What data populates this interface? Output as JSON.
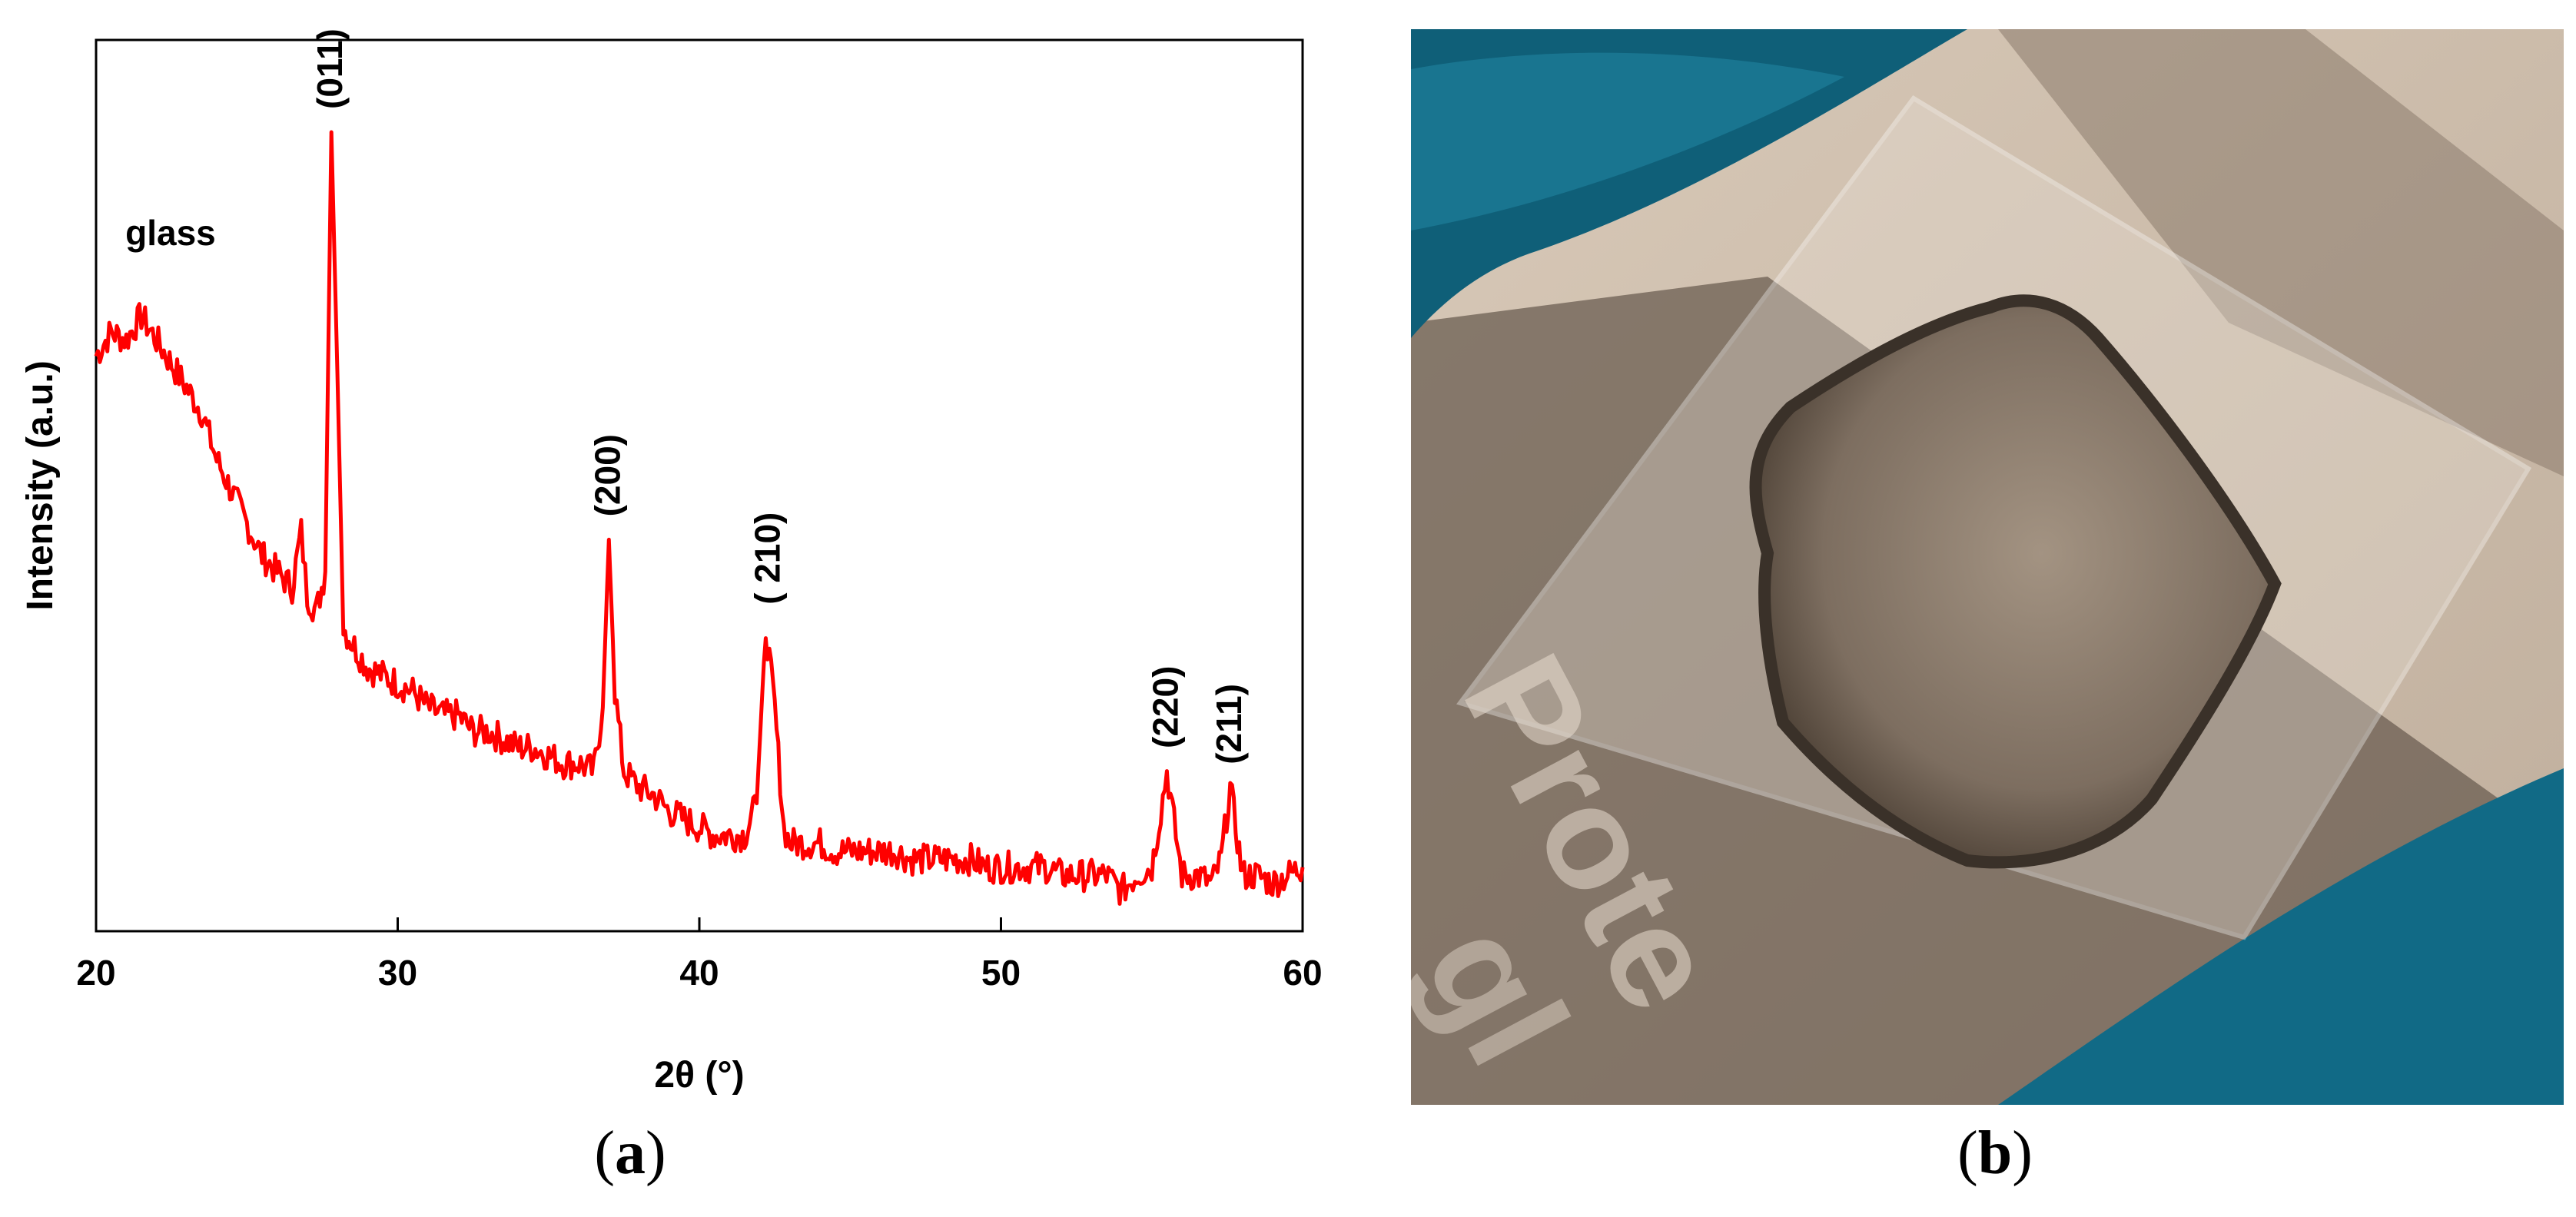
{
  "panels": [
    {
      "label": "a"
    },
    {
      "label": "b"
    }
  ],
  "chart_data": {
    "type": "line",
    "title": "",
    "xlabel": "2θ (°)",
    "ylabel": "Intensity (a.u.)",
    "xlim": [
      20,
      60
    ],
    "ylim": [
      0,
      100
    ],
    "xticks": [
      20,
      30,
      40,
      50,
      60
    ],
    "grid": false,
    "legend": "none",
    "color": "#ff0000",
    "annotations": [
      {
        "text": "glass",
        "x": 22.5,
        "y": 82
      },
      {
        "text": "(011)",
        "x": 27.8,
        "y": 100
      },
      {
        "text": "(200)",
        "x": 37.0,
        "y": 49
      },
      {
        "text": "( 210)",
        "x": 42.3,
        "y": 38
      },
      {
        "text": "(220)",
        "x": 55.5,
        "y": 20
      },
      {
        "text": "(211)",
        "x": 57.6,
        "y": 18
      }
    ],
    "series": [
      {
        "x": [
          20,
          20.5,
          21,
          21.5,
          22,
          22.5,
          23,
          23.5,
          24,
          24.5,
          25,
          25.5,
          26,
          26.5,
          26.8,
          27.0,
          27.3,
          27.6,
          27.8,
          28.0,
          28.2,
          28.5,
          29,
          29.5,
          30,
          30.5,
          31,
          31.5,
          32,
          32.5,
          33,
          33.5,
          34,
          34.5,
          35,
          35.5,
          36,
          36.5,
          36.8,
          37.0,
          37.2,
          37.5,
          38,
          38.5,
          39,
          39.5,
          40,
          40.5,
          41,
          41.5,
          41.9,
          42.2,
          42.5,
          42.8,
          43,
          43.5,
          44,
          44.5,
          45,
          45.5,
          46,
          46.5,
          47,
          47.5,
          48,
          48.5,
          49,
          49.5,
          50,
          50.5,
          51,
          51.5,
          52,
          52.5,
          53,
          53.5,
          54,
          54.5,
          55,
          55.3,
          55.5,
          55.8,
          56,
          56.5,
          57,
          57.3,
          57.6,
          57.9,
          58,
          58.5,
          59,
          59.5,
          60
        ],
        "y": [
          72,
          75,
          74,
          77,
          74,
          71,
          68,
          65,
          59,
          55,
          51,
          47,
          45,
          43,
          50,
          42,
          40,
          45,
          100,
          70,
          38,
          36,
          33,
          32,
          31,
          30,
          28,
          27,
          27,
          25,
          25,
          24,
          23,
          23,
          22,
          21,
          21,
          20,
          28,
          49,
          30,
          20,
          18,
          17,
          15,
          14,
          13,
          12,
          12,
          12,
          16,
          38,
          28,
          13,
          11,
          11,
          11,
          10,
          10,
          10,
          10,
          10,
          9,
          9,
          9,
          9,
          9,
          8,
          8,
          8,
          8,
          8,
          7,
          7,
          7,
          7,
          5,
          7,
          8,
          15,
          20,
          12,
          7,
          7,
          6,
          9,
          18,
          10,
          7,
          7,
          6,
          7,
          8
        ]
      }
    ]
  }
}
